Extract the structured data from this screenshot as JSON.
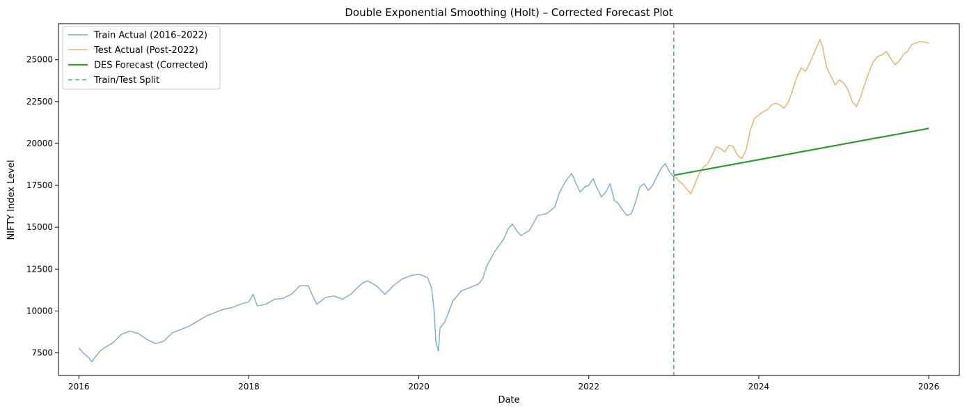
{
  "chart_data": {
    "type": "line",
    "title": "Double Exponential Smoothing (Holt) – Corrected Forecast Plot",
    "xlabel": "Date",
    "ylabel": "NIFTY Index Level",
    "xlim": [
      2015.76,
      2026.36
    ],
    "ylim": [
      6150,
      27150
    ],
    "x_ticks": [
      2016,
      2018,
      2020,
      2022,
      2024,
      2026
    ],
    "x_tick_labels": [
      "2016",
      "2018",
      "2020",
      "2022",
      "2024",
      "2026"
    ],
    "y_ticks": [
      7500,
      10000,
      12500,
      15000,
      17500,
      20000,
      22500,
      25000
    ],
    "y_tick_labels": [
      "7500",
      "10000",
      "12500",
      "15000",
      "17500",
      "20000",
      "22500",
      "25000"
    ],
    "grid": false,
    "legend_location": "top-left",
    "split": {
      "name": "Train/Test Split",
      "x": 2023.0,
      "color": "#5b9fc2"
    },
    "series": [
      {
        "name": "Train Actual (2016–2022)",
        "color": "#7eb0d0",
        "width": 1.5,
        "dash": "",
        "x": [
          2016.0,
          2016.05,
          2016.12,
          2016.15,
          2016.2,
          2016.25,
          2016.3,
          2016.4,
          2016.5,
          2016.6,
          2016.7,
          2016.8,
          2016.9,
          2017.0,
          2017.1,
          2017.2,
          2017.3,
          2017.4,
          2017.5,
          2017.6,
          2017.7,
          2017.8,
          2017.9,
          2018.0,
          2018.05,
          2018.1,
          2018.2,
          2018.3,
          2018.4,
          2018.5,
          2018.6,
          2018.7,
          2018.75,
          2018.8,
          2018.85,
          2018.9,
          2019.0,
          2019.1,
          2019.2,
          2019.3,
          2019.35,
          2019.4,
          2019.5,
          2019.6,
          2019.7,
          2019.8,
          2019.9,
          2020.0,
          2020.1,
          2020.15,
          2020.18,
          2020.2,
          2020.23,
          2020.25,
          2020.3,
          2020.35,
          2020.4,
          2020.5,
          2020.6,
          2020.7,
          2020.75,
          2020.8,
          2020.9,
          2021.0,
          2021.05,
          2021.1,
          2021.15,
          2021.2,
          2021.3,
          2021.4,
          2021.5,
          2021.6,
          2021.65,
          2021.7,
          2021.75,
          2021.8,
          2021.85,
          2021.9,
          2021.95,
          2022.0,
          2022.05,
          2022.1,
          2022.15,
          2022.2,
          2022.25,
          2022.3,
          2022.35,
          2022.4,
          2022.45,
          2022.5,
          2022.55,
          2022.6,
          2022.65,
          2022.7,
          2022.75,
          2022.8,
          2022.85,
          2022.9,
          2022.95,
          2023.0
        ],
        "y": [
          7800,
          7500,
          7200,
          6950,
          7300,
          7600,
          7800,
          8100,
          8600,
          8800,
          8650,
          8300,
          8050,
          8200,
          8700,
          8900,
          9100,
          9400,
          9700,
          9900,
          10100,
          10200,
          10400,
          10550,
          11000,
          10300,
          10400,
          10700,
          10750,
          11000,
          11500,
          11500,
          10900,
          10400,
          10600,
          10800,
          10900,
          10700,
          11000,
          11500,
          11700,
          11800,
          11500,
          11000,
          11500,
          11900,
          12100,
          12200,
          12000,
          11400,
          10000,
          8200,
          7600,
          9000,
          9300,
          9900,
          10600,
          11200,
          11400,
          11600,
          11900,
          12700,
          13600,
          14300,
          14900,
          15200,
          14800,
          14500,
          14800,
          15700,
          15800,
          16200,
          17000,
          17500,
          17900,
          18200,
          17600,
          17100,
          17400,
          17500,
          17900,
          17300,
          16800,
          17100,
          17600,
          16600,
          16400,
          16000,
          15700,
          15800,
          16500,
          17400,
          17600,
          17200,
          17500,
          18000,
          18500,
          18800,
          18300,
          18000
        ]
      },
      {
        "name": "Test Actual (Post-2022)",
        "color": "#f2b070",
        "width": 1.5,
        "dash": "",
        "x": [
          2023.0,
          2023.05,
          2023.1,
          2023.15,
          2023.2,
          2023.25,
          2023.3,
          2023.35,
          2023.4,
          2023.45,
          2023.5,
          2023.55,
          2023.6,
          2023.65,
          2023.7,
          2023.75,
          2023.8,
          2023.85,
          2023.9,
          2023.95,
          2024.0,
          2024.05,
          2024.1,
          2024.15,
          2024.2,
          2024.25,
          2024.3,
          2024.35,
          2024.4,
          2024.45,
          2024.5,
          2024.55,
          2024.6,
          2024.65,
          2024.7,
          2024.72,
          2024.75,
          2024.8,
          2024.85,
          2024.9,
          2024.95,
          2025.0,
          2025.05,
          2025.1,
          2025.15,
          2025.2,
          2025.25,
          2025.3,
          2025.35,
          2025.4,
          2025.45,
          2025.5,
          2025.55,
          2025.6,
          2025.65,
          2025.7,
          2025.75,
          2025.8,
          2025.85,
          2025.9,
          2025.95,
          2026.0
        ],
        "y": [
          18100,
          17800,
          17600,
          17300,
          17000,
          17600,
          18200,
          18600,
          18800,
          19300,
          19800,
          19700,
          19500,
          19900,
          19800,
          19300,
          19100,
          19600,
          20800,
          21500,
          21700,
          21900,
          22000,
          22300,
          22400,
          22300,
          22100,
          22500,
          23200,
          24000,
          24500,
          24300,
          24800,
          25400,
          26000,
          26200,
          25800,
          24500,
          24000,
          23500,
          23800,
          23600,
          23200,
          22500,
          22200,
          22800,
          23600,
          24300,
          24900,
          25200,
          25300,
          25500,
          25100,
          24700,
          24900,
          25300,
          25500,
          25900,
          26000,
          26100,
          26050,
          26000
        ]
      },
      {
        "name": "DES Forecast (Corrected)",
        "color": "#2f9a2f",
        "width": 2.2,
        "dash": "",
        "x": [
          2023.0,
          2026.0
        ],
        "y": [
          18100,
          20900
        ]
      }
    ]
  }
}
